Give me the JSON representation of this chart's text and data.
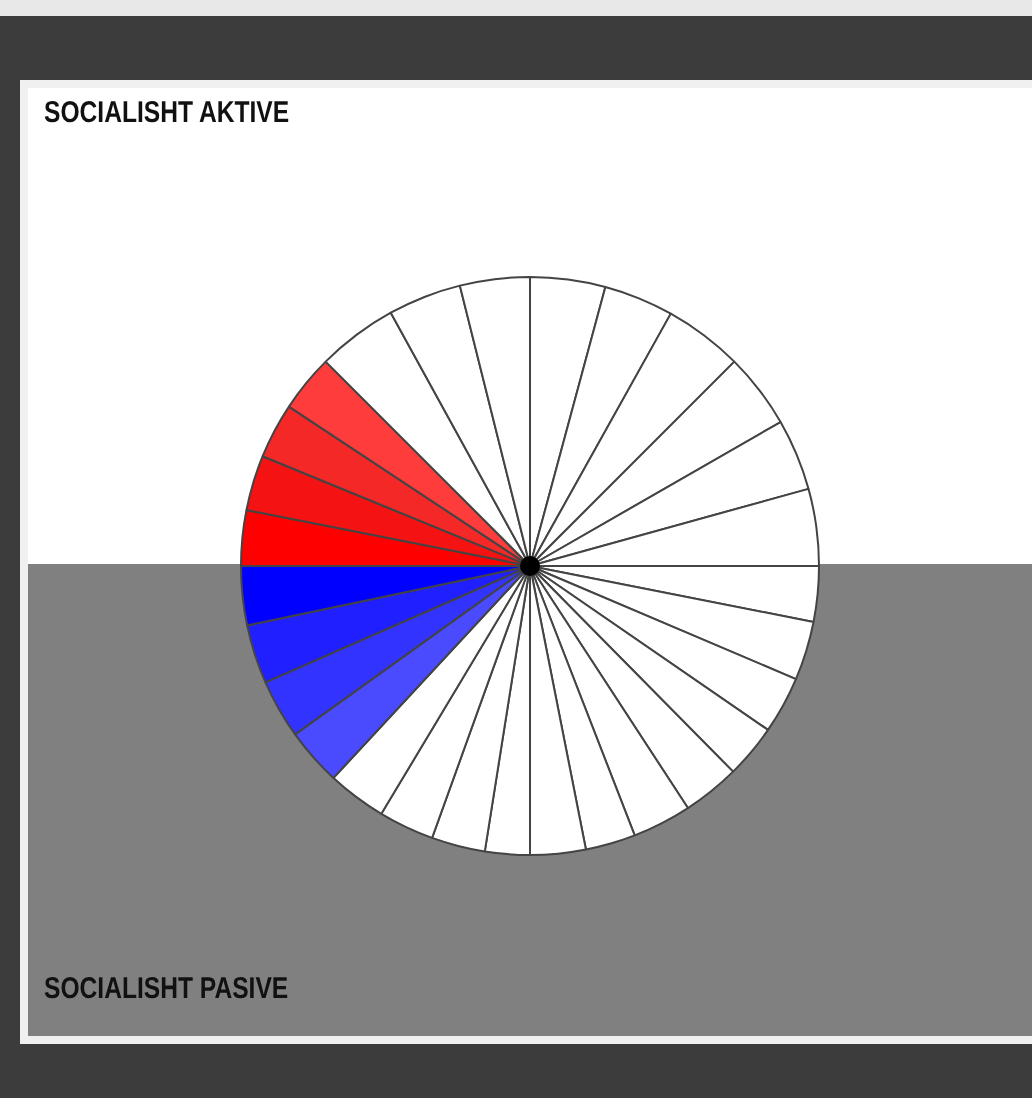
{
  "chart_data": {
    "type": "pie",
    "categories": [
      null,
      null,
      null,
      null,
      null,
      null,
      null,
      null,
      null,
      null,
      null,
      null,
      null,
      null,
      null,
      null,
      null,
      null,
      null,
      null,
      null,
      null,
      null,
      null,
      null,
      null,
      null,
      null,
      null
    ],
    "values": [
      4.2,
      3.9,
      4.4,
      4.2,
      4.0,
      4.3,
      3.1,
      3.3,
      3.2,
      3.0,
      3.2,
      3.3,
      2.8,
      3.1,
      2.5,
      3.0,
      3.1,
      3.3,
      3.2,
      3.3,
      3.3,
      3.3,
      3.1,
      3.1,
      3.1,
      3.2,
      4.5,
      4.1,
      3.9
    ],
    "colors": [
      "#ffffff",
      "#ffffff",
      "#ffffff",
      "#ffffff",
      "#ffffff",
      "#ffffff",
      "#ffffff",
      "#ffffff",
      "#ffffff",
      "#ffffff",
      "#ffffff",
      "#ffffff",
      "#ffffff",
      "#ffffff",
      "#ffffff",
      "#ffffff",
      "#ffffff",
      "#ffffff",
      "#4a4aff",
      "#3333ff",
      "#1f1fff",
      "#0000ff",
      "#ff0000",
      "#f51212",
      "#f52828",
      "#ff3c3c",
      "#ffffff",
      "#ffffff",
      "#ffffff"
    ],
    "legend": false,
    "annotations": [
      "SOCIALISHT AKTIVE",
      "SOCIALISHT PASIVE"
    ]
  }
}
